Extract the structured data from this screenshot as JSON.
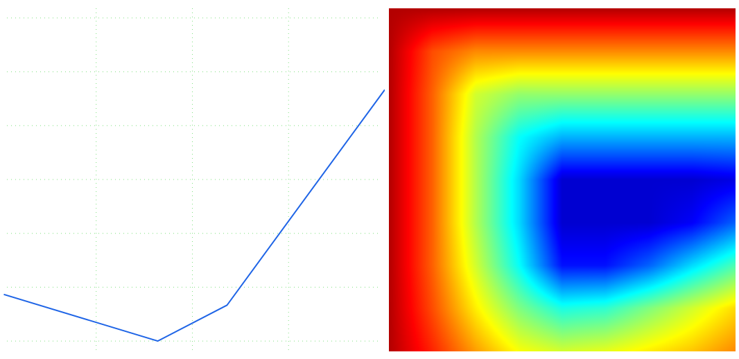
{
  "chart_data": [
    {
      "type": "line",
      "title": "",
      "xlabel": "",
      "ylabel": "",
      "grid": true,
      "xlim": [
        0,
        10
      ],
      "ylim": [
        0,
        10
      ],
      "x_gridlines": [
        2.5,
        5.0,
        7.5
      ],
      "y_gridlines": [
        0.5,
        2,
        3.5,
        5,
        6.5,
        8,
        9.5
      ],
      "series": [
        {
          "x": [
            0.1,
            4.1,
            5.9,
            10.0
          ],
          "y": [
            1.8,
            0.5,
            1.5,
            7.5
          ]
        }
      ],
      "colors": {
        "line": "#1e64e6",
        "grid": "#7fe07f"
      }
    },
    {
      "type": "heatmap",
      "title": "",
      "colormap": "jet",
      "grid_size": [
        9,
        9
      ],
      "values": [
        [
          0.95,
          0.95,
          0.95,
          0.95,
          0.95,
          0.95,
          0.95,
          0.95,
          0.95
        ],
        [
          0.95,
          0.8,
          0.74,
          0.74,
          0.74,
          0.74,
          0.74,
          0.74,
          0.74
        ],
        [
          0.95,
          0.78,
          0.58,
          0.52,
          0.52,
          0.52,
          0.52,
          0.52,
          0.52
        ],
        [
          0.95,
          0.78,
          0.55,
          0.38,
          0.3,
          0.3,
          0.3,
          0.3,
          0.3
        ],
        [
          0.95,
          0.78,
          0.55,
          0.34,
          0.08,
          0.08,
          0.08,
          0.08,
          0.1
        ],
        [
          0.95,
          0.78,
          0.55,
          0.34,
          0.08,
          0.08,
          0.08,
          0.12,
          0.22
        ],
        [
          0.95,
          0.78,
          0.58,
          0.38,
          0.14,
          0.14,
          0.22,
          0.34,
          0.45
        ],
        [
          0.95,
          0.8,
          0.64,
          0.5,
          0.4,
          0.42,
          0.5,
          0.58,
          0.66
        ],
        [
          0.95,
          0.84,
          0.72,
          0.62,
          0.58,
          0.6,
          0.64,
          0.68,
          0.74
        ]
      ]
    }
  ]
}
